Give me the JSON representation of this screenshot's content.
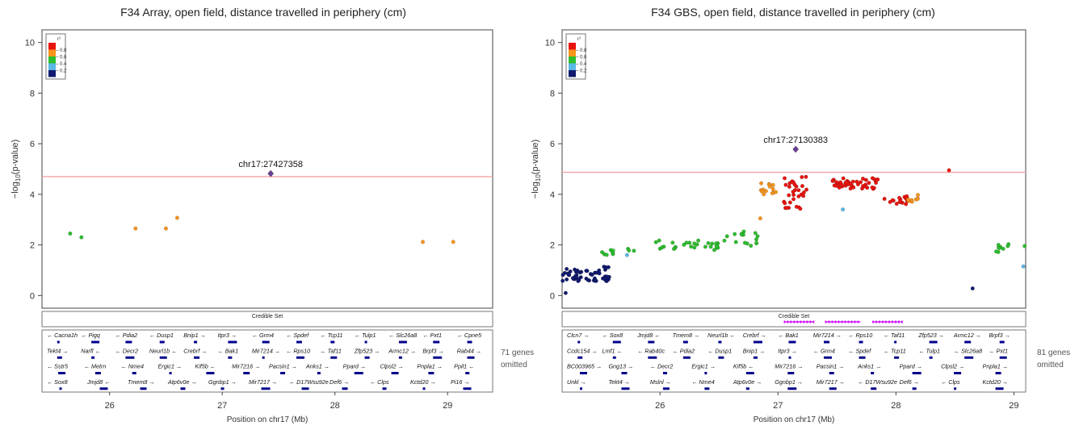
{
  "legend": {
    "title": "r²",
    "labels": [
      "0.8",
      "0.6",
      "0.4",
      "0.2"
    ],
    "colors": [
      "#e8140f",
      "#f7941d",
      "#2ebd2e",
      "#59b8e6",
      "#101a6e"
    ]
  },
  "reference_color": "#6a3d9a",
  "threshold_color": "#f3a3a3",
  "credible_set_color": "#cc00ff",
  "gene_color": "#00008b",
  "chart_data": [
    {
      "type": "scatter",
      "title": "F34 Array, open field, distance travelled in periphery (cm)",
      "xlabel": "Position on chr17 (Mb)",
      "ylabel": "-log10(p-value)",
      "xlim": [
        25.4,
        29.4
      ],
      "ylim": [
        -0.5,
        10.5
      ],
      "xticks": [
        26,
        27,
        28,
        29
      ],
      "yticks": [
        0,
        2,
        4,
        6,
        8,
        10
      ],
      "threshold": 4.7,
      "lead_snp": {
        "label": "chr17:27427358",
        "x": 27.43,
        "y": 4.82
      },
      "points": [
        {
          "x": 25.65,
          "y": 2.45,
          "c": "green"
        },
        {
          "x": 25.75,
          "y": 2.3,
          "c": "green"
        },
        {
          "x": 26.23,
          "y": 2.65,
          "c": "orange"
        },
        {
          "x": 26.5,
          "y": 2.65,
          "c": "orange"
        },
        {
          "x": 26.6,
          "y": 3.07,
          "c": "orange"
        },
        {
          "x": 28.78,
          "y": 2.12,
          "c": "orange"
        },
        {
          "x": 29.05,
          "y": 2.12,
          "c": "orange"
        }
      ],
      "credible_set_label": "Credible Set",
      "credible_set": [],
      "omitted_note": "71 genes omitted",
      "gene_rows": [
        [
          "← Cacna1h",
          "← Pigq",
          "← Pdia2",
          "← Dusp1",
          "Bnip1 →",
          "Itpr3 →",
          "← Grm4",
          "← Spdef",
          "← Tcp11",
          "← Tulp1",
          "← Slc26a8",
          "← Pxt1",
          "← Cpne5"
        ],
        [
          "Tekt4 →",
          "Narfl ←",
          "← Decr2",
          "Neurl1b ←",
          "Crebrf →",
          "← Bak1",
          "Mir7214 →",
          "← Rps10",
          "← Taf11",
          "Zfp523 →",
          "Armc12 →",
          "Brpf3 →",
          "Rab44 →"
        ],
        [
          "← Sstr5",
          "← Metrn",
          "← Nme4",
          "Ergic1 →",
          "Kif5b ←",
          "Mir7216 →",
          "Pacsin1 →",
          "Anks1 →",
          "Ppard →",
          "Clpsl2 →",
          "Pnpla1 →",
          "Ppil1 ←"
        ],
        [
          "← Sox8",
          "Jmjd8 ←",
          "Tmem8 →",
          "Atp6v0e →",
          "Ggnbp1 →",
          "Mir7217 →",
          "← D17Wsu92e",
          "Def6 →",
          "← Clps",
          "Kctd20 →",
          "Pi16 →"
        ]
      ]
    },
    {
      "type": "scatter",
      "title": "F34 GBS, open field, distance travelled in periphery (cm)",
      "xlabel": "Position on chr17 (Mb)",
      "ylabel": "-log10(p-value)",
      "xlim": [
        25.17,
        29.1
      ],
      "ylim": [
        -0.5,
        10.5
      ],
      "xticks": [
        26,
        27,
        28,
        29
      ],
      "yticks": [
        0,
        2,
        4,
        6,
        8,
        10
      ],
      "threshold": 4.87,
      "lead_snp": {
        "label": "chr17:27130383",
        "x": 27.15,
        "y": 5.78
      },
      "clusters": [
        {
          "c": "navy",
          "n": 55,
          "x": [
            25.17,
            25.57
          ],
          "y": [
            0.55,
            1.15
          ]
        },
        {
          "c": "green",
          "n": 10,
          "x": [
            25.5,
            25.8
          ],
          "y": [
            1.6,
            1.85
          ]
        },
        {
          "c": "green",
          "n": 30,
          "x": [
            25.95,
            26.55
          ],
          "y": [
            1.8,
            2.2
          ]
        },
        {
          "c": "green",
          "n": 15,
          "x": [
            26.55,
            26.85
          ],
          "y": [
            1.95,
            2.6
          ]
        },
        {
          "c": "orange",
          "n": 14,
          "x": [
            26.85,
            27.0
          ],
          "y": [
            4.0,
            4.45
          ]
        },
        {
          "c": "red",
          "n": 32,
          "x": [
            27.05,
            27.25
          ],
          "y": [
            3.4,
            4.7
          ]
        },
        {
          "c": "red",
          "n": 45,
          "x": [
            27.45,
            27.85
          ],
          "y": [
            4.2,
            4.65
          ]
        },
        {
          "c": "red",
          "n": 16,
          "x": [
            27.9,
            28.1
          ],
          "y": [
            3.6,
            4.0
          ]
        },
        {
          "c": "orange",
          "n": 8,
          "x": [
            28.1,
            28.2
          ],
          "y": [
            3.6,
            4.1
          ]
        },
        {
          "c": "green",
          "n": 10,
          "x": [
            28.85,
            29.1
          ],
          "y": [
            1.7,
            2.1
          ]
        }
      ],
      "points": [
        {
          "x": 25.2,
          "y": 0.1,
          "c": "navy"
        },
        {
          "x": 25.72,
          "y": 1.6,
          "c": "cyan"
        },
        {
          "x": 26.85,
          "y": 3.05,
          "c": "orange"
        },
        {
          "x": 27.55,
          "y": 3.4,
          "c": "cyan"
        },
        {
          "x": 28.45,
          "y": 4.95,
          "c": "red"
        },
        {
          "x": 28.65,
          "y": 0.28,
          "c": "navy"
        },
        {
          "x": 29.08,
          "y": 1.15,
          "c": "cyan"
        }
      ],
      "credible_set_label": "Credible Set",
      "credible_set": [
        [
          27.05,
          27.3
        ],
        [
          27.4,
          27.7
        ],
        [
          27.8,
          28.05
        ]
      ],
      "omitted_note": "81 genes omitted",
      "gene_rows": [
        [
          "Clcn7 →",
          "← Sox8",
          "Jmjd8 ←",
          "Tmem8 →",
          "Neurl1b ←",
          "Crebrf →",
          "← Bak1",
          "Mir7214 →",
          "← Rps10",
          "← Taf11",
          "Zfp523 →",
          "Armc12 →",
          "Brpf3 →"
        ],
        [
          "Ccdc154 →",
          "Lmf1 ←",
          "← Rab40c",
          "← Pdia2",
          "← Dusp1",
          "Bnip1 →",
          "Itpr3 →",
          "← Grm4",
          "← Spdef",
          "← Tcp11",
          "← Tulp1",
          "← Slc26a8",
          "← Pxt1"
        ],
        [
          "BC003965 →",
          "Gng13 →",
          "← Decr2",
          "Ergic1 →",
          "Kif5b ←",
          "Mir7216 →",
          "Pacsin1 →",
          "Anks1 →",
          "Ppard →",
          "Clpsl2 →",
          "Pnpla1 →"
        ],
        [
          "Unkl →",
          "Tekt4 →",
          "Mslnl →",
          "← Nme4",
          "Atp6v0e →",
          "Ggnbp1 →",
          "Mir7217 →",
          "← D17Wsu92e",
          "Def6 →",
          "← Clps",
          "Kctd20 →"
        ]
      ]
    }
  ]
}
